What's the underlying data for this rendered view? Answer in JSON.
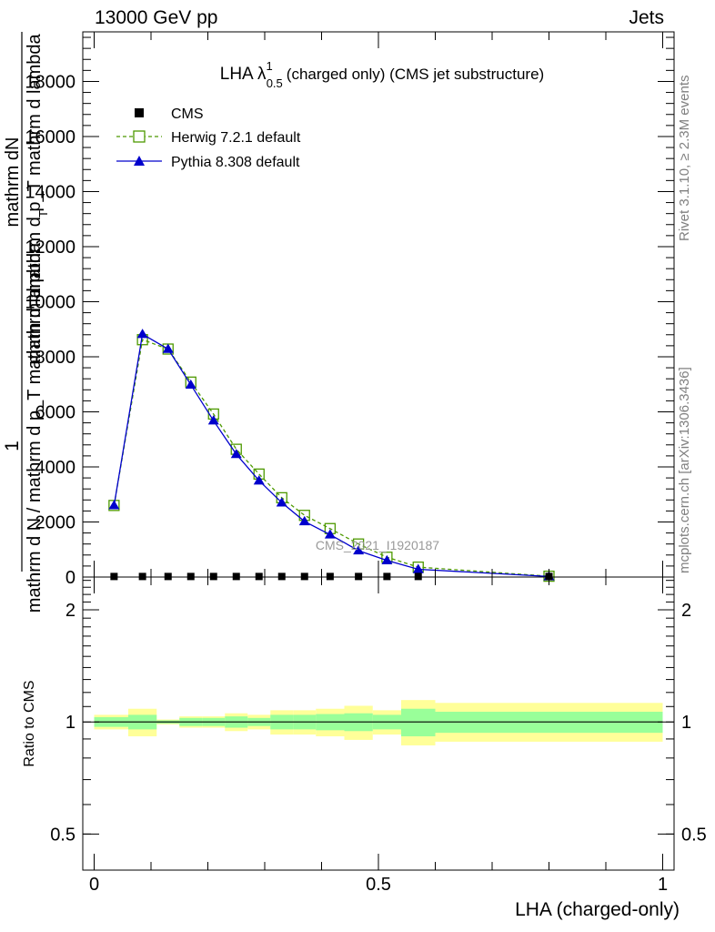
{
  "header": {
    "left": "13000 GeV pp",
    "right": "Jets"
  },
  "side_labels": {
    "rivet": "Rivet 3.1.10, ≥ 2.3M events",
    "mcplots": "mcplots.cern.ch [arXiv:1306.3436]"
  },
  "watermark": "CMS_2021_I1920187",
  "chart_data": [
    {
      "type": "line",
      "title_main": "LHA λ",
      "title_sup": "1",
      "title_sub": "0.5",
      "title_rest": "(charged only) (CMS jet substructure)",
      "ylabel_parts": [
        "1",
        "mathrm d N / mathrm d p_T mathrm d lambda",
        "mathrm dN",
        "mathrm d p_T mathrm d lambda",
        "mathrm d p",
        "T"
      ],
      "ylim": [
        0,
        19800
      ],
      "yticks": [
        0,
        2000,
        4000,
        6000,
        8000,
        10000,
        12000,
        14000,
        16000,
        18000
      ],
      "ytick_labels": [
        "0",
        "2000",
        "4000",
        "6000",
        "8000",
        "10000",
        "12000",
        "14000",
        "16000",
        "18000"
      ],
      "xlim": [
        -0.02,
        1.02
      ],
      "legend": {
        "position": "top-left",
        "entries": [
          "CMS",
          "Herwig 7.2.1 default",
          "Pythia 8.308 default"
        ]
      },
      "series": [
        {
          "name": "CMS",
          "color": "#000000",
          "marker": "square",
          "x": [
            0.035,
            0.085,
            0.13,
            0.17,
            0.21,
            0.25,
            0.29,
            0.33,
            0.37,
            0.415,
            0.465,
            0.515,
            0.57,
            0.8
          ],
          "values": [
            20,
            20,
            20,
            20,
            20,
            20,
            20,
            20,
            20,
            20,
            20,
            20,
            20,
            20
          ]
        },
        {
          "name": "Herwig 7.2.1 default",
          "color": "#4d9900",
          "marker": "open-square",
          "dash": true,
          "x": [
            0.035,
            0.085,
            0.13,
            0.17,
            0.21,
            0.25,
            0.29,
            0.33,
            0.37,
            0.415,
            0.465,
            0.515,
            0.57,
            0.8
          ],
          "values": [
            2600,
            8620,
            8280,
            7080,
            5920,
            4640,
            3740,
            2880,
            2240,
            1760,
            1200,
            720,
            360,
            30
          ]
        },
        {
          "name": "Pythia 8.308 default",
          "color": "#0000cc",
          "marker": "triangle",
          "x": [
            0.035,
            0.085,
            0.13,
            0.17,
            0.21,
            0.25,
            0.29,
            0.33,
            0.37,
            0.415,
            0.465,
            0.515,
            0.57,
            0.8
          ],
          "values": [
            2600,
            8820,
            8280,
            6980,
            5680,
            4460,
            3500,
            2700,
            2020,
            1540,
            960,
            600,
            280,
            20
          ]
        }
      ]
    },
    {
      "type": "area",
      "ylabel": "Ratio to CMS",
      "xlabel": "LHA (charged-only)",
      "ylim": [
        0.4,
        2.45
      ],
      "log_y": true,
      "yticks": [
        0.5,
        1,
        2
      ],
      "ytick_labels": [
        "0.5",
        "1",
        "2"
      ],
      "xlim": [
        -0.02,
        1.02
      ],
      "xticks": [
        0,
        0.5,
        1
      ],
      "xtick_labels": [
        "0",
        "0.5",
        "1"
      ],
      "reference_line": 1,
      "bins": [
        0.0,
        0.06,
        0.11,
        0.15,
        0.19,
        0.23,
        0.27,
        0.31,
        0.35,
        0.39,
        0.44,
        0.49,
        0.54,
        0.6,
        1.0
      ],
      "inner_band": {
        "color": "#99ff99",
        "low": [
          0.97,
          0.955,
          0.99,
          0.975,
          0.975,
          0.965,
          0.975,
          0.955,
          0.955,
          0.95,
          0.945,
          0.955,
          0.915,
          0.935
        ],
        "high": [
          1.03,
          1.045,
          1.01,
          1.025,
          1.025,
          1.035,
          1.025,
          1.045,
          1.045,
          1.05,
          1.055,
          1.045,
          1.085,
          1.065
        ]
      },
      "outer_band": {
        "color": "#ffff99",
        "low": [
          0.955,
          0.915,
          0.985,
          0.965,
          0.965,
          0.945,
          0.955,
          0.925,
          0.925,
          0.915,
          0.895,
          0.925,
          0.865,
          0.885
        ],
        "high": [
          1.045,
          1.085,
          1.015,
          1.035,
          1.035,
          1.055,
          1.045,
          1.075,
          1.075,
          1.085,
          1.105,
          1.075,
          1.145,
          1.125
        ]
      }
    }
  ]
}
